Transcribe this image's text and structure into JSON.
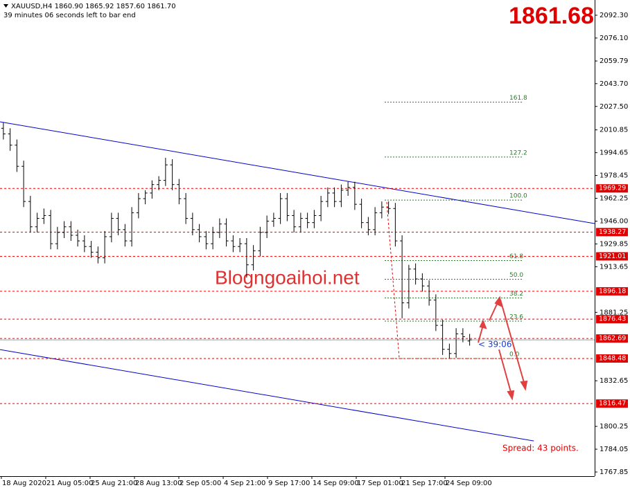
{
  "chart_data": {
    "type": "ohlc",
    "title": "XAUUSD,H4  1860.90 1865.92 1857.60 1861.70",
    "subtitle": "39 minutes 06 seconds left to bar end",
    "bid": "1861.68",
    "watermark": "Blogngoaihoi.net",
    "countdown": "< 39:06",
    "spread": "Spread: 43 points.",
    "bar_color": "#000000",
    "xlim": [
      0,
      88
    ],
    "ylim": [
      1764.9,
      2103.1
    ],
    "xticks": [
      {
        "value": 0.2,
        "label": "18 Aug 2020"
      },
      {
        "value": 6.77,
        "label": "21 Aug 05:00"
      },
      {
        "value": 13.33,
        "label": "25 Aug 21:00"
      },
      {
        "value": 19.9,
        "label": "28 Aug 13:00"
      },
      {
        "value": 26.46,
        "label": "2 Sep 05:00"
      },
      {
        "value": 33.03,
        "label": "4 Sep 21:00"
      },
      {
        "value": 39.59,
        "label": "9 Sep 17:00"
      },
      {
        "value": 46.15,
        "label": "14 Sep 09:00"
      },
      {
        "value": 52.72,
        "label": "17 Sep 01:00"
      },
      {
        "value": 59.28,
        "label": "21 Sep 17:00"
      },
      {
        "value": 65.85,
        "label": "24 Sep 09:00"
      }
    ],
    "yticks": [
      {
        "value": 2092.3,
        "label": "2092.30"
      },
      {
        "value": 2076.1,
        "label": "2076.10"
      },
      2059.79,
      {
        "value": 2043.7,
        "label": "2043.70"
      },
      {
        "value": 2027.5,
        "label": "2027.50"
      },
      2010.85,
      1994.65,
      1978.45,
      1962.25,
      {
        "value": 1946,
        "label": "1946.00"
      },
      1929.85,
      1913.65,
      1881.25,
      1832.65,
      1800.25,
      1784.05,
      1767.85
    ],
    "levels": [
      1969.29,
      1938.27,
      1921.01,
      1896.18,
      1876.43,
      1862.69,
      1848.48,
      1816.47
    ],
    "level_color": "#e00000",
    "fibonacci": {
      "high": 1961,
      "low": 1848.48,
      "color": "#2a7a2a",
      "levels": [
        161.8,
        127.2,
        {
          "value": 100,
          "label": "100.0"
        },
        61.8,
        {
          "value": 50,
          "label": "50.0"
        },
        38.2,
        23.6,
        {
          "value": 0,
          "label": "0.0"
        }
      ]
    },
    "trendlines": [
      {
        "color": "#0000cc",
        "start": [
          0,
          2016.6
        ],
        "end": [
          88,
          1944.3
        ]
      },
      {
        "color": "#0000cc",
        "start": [
          0,
          1854.8
        ],
        "end": [
          79,
          1789.9
        ]
      }
    ],
    "open": [
      2012,
      2008,
      2000,
      1985,
      1960,
      1942,
      1948,
      1950,
      1930,
      1938,
      1942,
      1936,
      1932,
      1928,
      1924,
      1920,
      1935,
      1948,
      1940,
      1932,
      1952,
      1962,
      1966,
      1972,
      1975,
      1986,
      1972,
      1962,
      1948,
      1940,
      1935,
      1930,
      1938,
      1944,
      1932,
      1928,
      1930,
      1915,
      1925,
      1938,
      1946,
      1948,
      1962,
      1950,
      1942,
      1948,
      1945,
      1950,
      1960,
      1966,
      1960,
      1968,
      1970,
      1958,
      1945,
      1940,
      1952,
      1956,
      1955,
      1932,
      1888,
      1912,
      1905,
      1900,
      1890,
      1872,
      1855,
      1852,
      1866,
      1860.9
    ],
    "high": [
      2016,
      2012,
      2004,
      1989,
      1964,
      1952,
      1955,
      1954,
      1942,
      1946,
      1946,
      1940,
      1936,
      1932,
      1928,
      1939,
      1952,
      1952,
      1944,
      1956,
      1966,
      1968,
      1975,
      1978,
      1991,
      1990,
      1976,
      1966,
      1952,
      1944,
      1939,
      1942,
      1948,
      1948,
      1936,
      1934,
      1934,
      1929,
      1942,
      1950,
      1952,
      1966,
      1966,
      1954,
      1952,
      1952,
      1954,
      1964,
      1970,
      1970,
      1972,
      1974,
      1974,
      1962,
      1949,
      1956,
      1960,
      1960,
      1959,
      1936,
      1915,
      1916,
      1909,
      1904,
      1894,
      1876,
      1859,
      1870,
      1870,
      1865.92
    ],
    "low": [
      2004,
      1996,
      1981,
      1956,
      1938,
      1938,
      1944,
      1926,
      1926,
      1934,
      1932,
      1928,
      1924,
      1920,
      1916,
      1916,
      1931,
      1936,
      1928,
      1928,
      1948,
      1958,
      1962,
      1968,
      1971,
      1968,
      1958,
      1944,
      1936,
      1931,
      1926,
      1926,
      1934,
      1928,
      1924,
      1924,
      1906,
      1911,
      1921,
      1934,
      1942,
      1944,
      1946,
      1938,
      1938,
      1941,
      1941,
      1946,
      1956,
      1956,
      1956,
      1964,
      1954,
      1941,
      1936,
      1936,
      1948,
      1951,
      1928,
      1877,
      1884,
      1901,
      1896,
      1886,
      1868,
      1851,
      1848.5,
      1849,
      1860,
      1857.6
    ],
    "close": [
      2008,
      2000,
      1985,
      1960,
      1942,
      1948,
      1950,
      1930,
      1938,
      1942,
      1936,
      1932,
      1928,
      1924,
      1920,
      1935,
      1948,
      1940,
      1932,
      1952,
      1962,
      1966,
      1972,
      1975,
      1986,
      1972,
      1962,
      1948,
      1940,
      1935,
      1930,
      1938,
      1944,
      1932,
      1928,
      1930,
      1915,
      1925,
      1938,
      1946,
      1948,
      1962,
      1950,
      1942,
      1948,
      1945,
      1950,
      1960,
      1966,
      1960,
      1968,
      1970,
      1958,
      1945,
      1940,
      1952,
      1956,
      1955,
      1932,
      1888,
      1912,
      1905,
      1900,
      1890,
      1872,
      1855,
      1852,
      1866,
      1864,
      1861.7
    ]
  }
}
